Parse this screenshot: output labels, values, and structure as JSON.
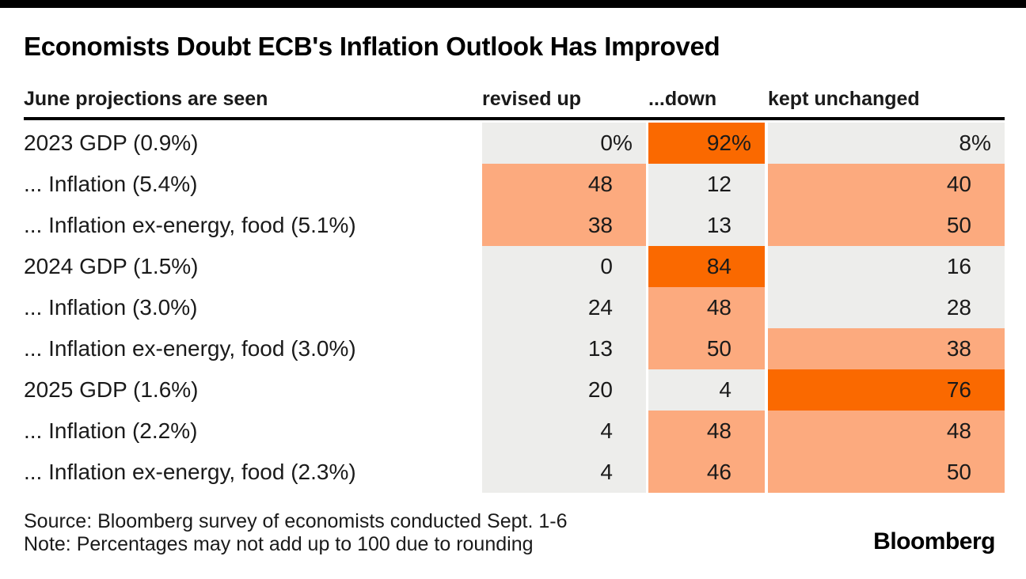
{
  "title": "Economists Doubt ECB's Inflation Outlook Has Improved",
  "colors": {
    "gray": "#ededeb",
    "peach": "#fcaa7e",
    "orange": "#fa6900",
    "topbar": "#000000",
    "text": "#1a1a1a"
  },
  "table": {
    "row_header": "June projections are seen",
    "columns": [
      "revised up",
      "...down",
      "kept unchanged"
    ],
    "rows": [
      {
        "label": "2023 GDP (0.9%)",
        "values": [
          0,
          92,
          8
        ],
        "suffix": "%",
        "colors": [
          "gray",
          "orange",
          "gray"
        ]
      },
      {
        "label": "... Inflation (5.4%)",
        "values": [
          48,
          12,
          40
        ],
        "colors": [
          "peach",
          "gray",
          "peach"
        ]
      },
      {
        "label": "... Inflation ex-energy, food (5.1%)",
        "values": [
          38,
          13,
          50
        ],
        "colors": [
          "peach",
          "gray",
          "peach"
        ]
      },
      {
        "label": "2024 GDP (1.5%)",
        "values": [
          0,
          84,
          16
        ],
        "colors": [
          "gray",
          "orange",
          "gray"
        ]
      },
      {
        "label": "... Inflation (3.0%)",
        "values": [
          24,
          48,
          28
        ],
        "colors": [
          "gray",
          "peach",
          "gray"
        ]
      },
      {
        "label": "... Inflation ex-energy, food (3.0%)",
        "values": [
          13,
          50,
          38
        ],
        "colors": [
          "gray",
          "peach",
          "peach"
        ]
      },
      {
        "label": "2025 GDP (1.6%)",
        "values": [
          20,
          4,
          76
        ],
        "colors": [
          "gray",
          "gray",
          "orange"
        ]
      },
      {
        "label": "... Inflation (2.2%)",
        "values": [
          4,
          48,
          48
        ],
        "colors": [
          "gray",
          "peach",
          "peach"
        ]
      },
      {
        "label": "... Inflation ex-energy, food (2.3%)",
        "values": [
          4,
          46,
          50
        ],
        "colors": [
          "gray",
          "peach",
          "peach"
        ]
      }
    ]
  },
  "footer": {
    "source": "Source: Bloomberg survey of economists conducted Sept. 1-6",
    "note": "Note: Percentages may not add up to 100 due to rounding",
    "logo": "Bloomberg"
  },
  "chart_data": {
    "type": "heatmap",
    "title": "Economists Doubt ECB's Inflation Outlook Has Improved",
    "row_header": "June projections are seen",
    "columns": [
      "revised up",
      "...down",
      "kept unchanged"
    ],
    "rows": [
      "2023 GDP (0.9%)",
      "... Inflation (5.4%)",
      "... Inflation ex-energy, food (5.1%)",
      "2024 GDP (1.5%)",
      "... Inflation (3.0%)",
      "... Inflation ex-energy, food (3.0%)",
      "2025 GDP (1.6%)",
      "... Inflation (2.2%)",
      "... Inflation ex-energy, food (2.3%)"
    ],
    "values": [
      [
        0,
        92,
        8
      ],
      [
        48,
        12,
        40
      ],
      [
        38,
        13,
        50
      ],
      [
        0,
        84,
        16
      ],
      [
        24,
        48,
        28
      ],
      [
        13,
        50,
        38
      ],
      [
        20,
        4,
        76
      ],
      [
        4,
        48,
        48
      ],
      [
        4,
        46,
        50
      ]
    ],
    "unit": "percent of surveyed economists",
    "color_scale": {
      "low": "#ededeb",
      "mid": "#fcaa7e",
      "high": "#fa6900"
    },
    "legend_position": "none",
    "grid": false,
    "source": "Source: Bloomberg survey of economists conducted Sept. 1-6",
    "note": "Note: Percentages may not add up to 100 due to rounding"
  }
}
